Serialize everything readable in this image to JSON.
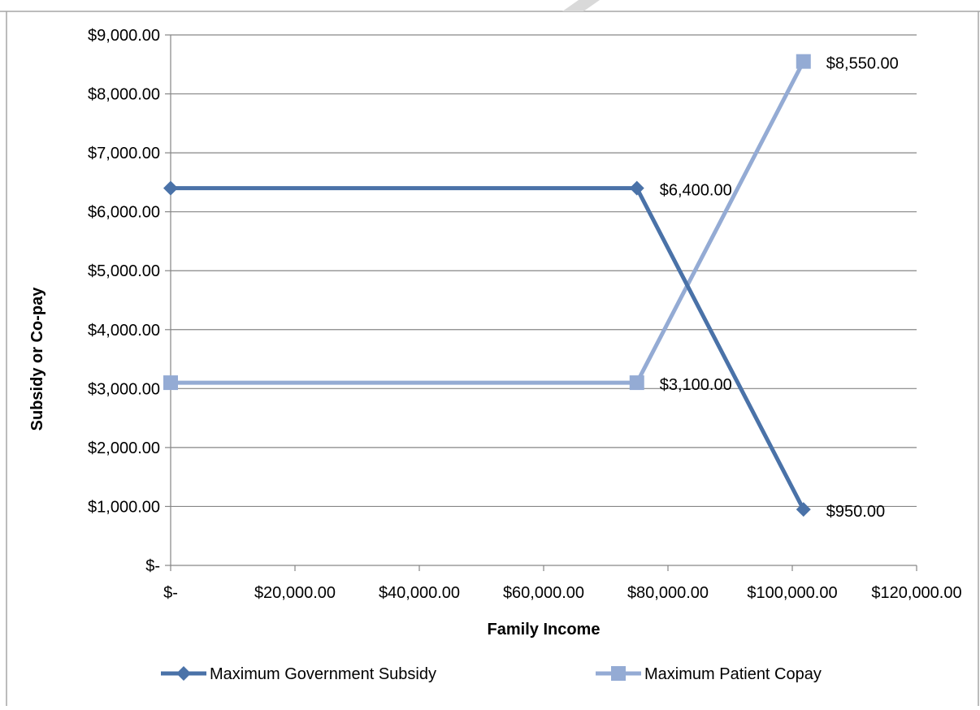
{
  "chart_data": {
    "type": "line",
    "title": "",
    "xlabel": "Family Income",
    "ylabel": "Subsidy or Co-pay",
    "xlim": [
      0,
      120000
    ],
    "ylim": [
      0,
      9000
    ],
    "x_ticks": [
      0,
      20000,
      40000,
      60000,
      80000,
      100000,
      120000
    ],
    "x_tick_labels": [
      "$-",
      "$20,000.00",
      "$40,000.00",
      "$60,000.00",
      "$80,000.00",
      "$100,000.00",
      "$120,000.00"
    ],
    "y_ticks": [
      0,
      1000,
      2000,
      3000,
      4000,
      5000,
      6000,
      7000,
      8000,
      9000
    ],
    "y_tick_labels": [
      "$-",
      "$1,000.00",
      "$2,000.00",
      "$3,000.00",
      "$4,000.00",
      "$5,000.00",
      "$6,000.00",
      "$7,000.00",
      "$8,000.00",
      "$9,000.00"
    ],
    "grid": "horizontal",
    "legend_position": "bottom",
    "series": [
      {
        "name": "Maximum Government Subsidy",
        "color": "#4a72a8",
        "marker": "diamond",
        "x": [
          0,
          75000,
          101800
        ],
        "y": [
          6400,
          6400,
          950
        ],
        "data_labels": [
          {
            "index": 1,
            "text": "$6,400.00"
          },
          {
            "index": 2,
            "text": "$950.00"
          }
        ]
      },
      {
        "name": "Maximum Patient Copay",
        "color": "#94abd4",
        "marker": "square",
        "x": [
          0,
          75000,
          101800
        ],
        "y": [
          3100,
          3100,
          8550
        ],
        "data_labels": [
          {
            "index": 1,
            "text": "$3,100.00"
          },
          {
            "index": 2,
            "text": "$8,550.00"
          }
        ]
      }
    ]
  }
}
